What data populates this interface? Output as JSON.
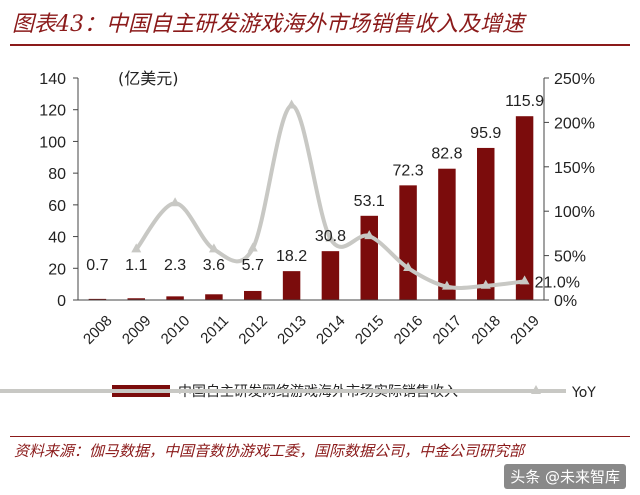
{
  "title": "图表43：中国自主研发游戏海外市场销售收入及增速",
  "source": "资料来源：伽马数据，中国音数协游戏工委，国际数据公司，中金公司研究部",
  "watermark": "头条 @未来智库",
  "colors": {
    "bar": "#7b0c0c",
    "line": "#c8c8c4",
    "accent": "#8b1a1a"
  },
  "chart_data": {
    "type": "bar",
    "categories": [
      "2008",
      "2009",
      "2010",
      "2011",
      "2012",
      "2013",
      "2014",
      "2015",
      "2016",
      "2017",
      "2018",
      "2019"
    ],
    "series": [
      {
        "name": "中国自主研发网络游戏海外市场实际销售收入",
        "type": "bar",
        "axis": "left",
        "values": [
          0.7,
          1.1,
          2.3,
          3.6,
          5.7,
          18.2,
          30.8,
          53.1,
          72.3,
          82.8,
          95.9,
          115.9
        ]
      },
      {
        "name": "YoY",
        "type": "line",
        "axis": "right",
        "values": [
          null,
          57,
          109,
          57,
          58,
          219,
          69,
          72,
          36,
          15,
          16,
          21.0
        ]
      }
    ],
    "bar_labels": [
      "0.7",
      "1.1",
      "2.3",
      "3.6",
      "5.7",
      "18.2",
      "30.8",
      "53.1",
      "72.3",
      "82.8",
      "95.9",
      "115.9"
    ],
    "line_end_label": "21.0%",
    "unit_label": "(亿美元)",
    "ylim_left": [
      0,
      140
    ],
    "yticks_left": [
      "0",
      "20",
      "40",
      "60",
      "80",
      "100",
      "120",
      "140"
    ],
    "ylim_right": [
      0,
      250
    ],
    "yticks_right": [
      "0%",
      "50%",
      "100%",
      "150%",
      "200%",
      "250%"
    ],
    "grid": false,
    "legend_position": "bottom"
  }
}
